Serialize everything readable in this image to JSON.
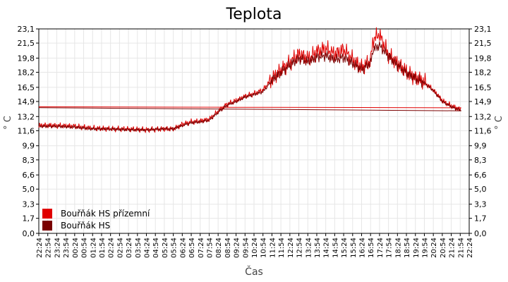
{
  "colors": {
    "series1": "#e00000",
    "series2": "#7a0000",
    "grid": "#e6e6e6",
    "axis": "#000000"
  },
  "chart_data": {
    "type": "line",
    "title": "Teplota",
    "xlabel": "Čas",
    "ylabel": "° C",
    "grid": true,
    "legend_position": "bottom-left",
    "ylim": [
      0,
      23.1
    ],
    "y_ticks": [
      "0,0",
      "1,7",
      "3,3",
      "5,0",
      "6,6",
      "8,3",
      "9,9",
      "11,6",
      "13,2",
      "14,9",
      "16,5",
      "18,2",
      "19,8",
      "21,5",
      "23,1"
    ],
    "x_ticks": [
      "22:24",
      "22:54",
      "23:24",
      "23:54",
      "00:24",
      "00:54",
      "01:24",
      "01:54",
      "02:24",
      "02:54",
      "03:24",
      "03:54",
      "04:24",
      "04:54",
      "05:24",
      "05:54",
      "06:24",
      "06:54",
      "07:24",
      "07:54",
      "08:24",
      "08:54",
      "09:24",
      "09:54",
      "10:24",
      "10:54",
      "11:24",
      "11:54",
      "12:24",
      "12:54",
      "13:24",
      "13:54",
      "14:24",
      "14:54",
      "15:24",
      "15:54",
      "16:24",
      "16:54",
      "17:24",
      "17:54",
      "18:24",
      "18:54",
      "19:24",
      "19:54",
      "20:24",
      "20:54",
      "21:24",
      "21:54",
      "22:24"
    ],
    "series": [
      {
        "name": "Bouřňák HS přízemní",
        "x": [
          "22:24",
          "23:24",
          "00:24",
          "01:24",
          "02:24",
          "03:24",
          "04:24",
          "05:24",
          "05:54",
          "06:24",
          "06:54",
          "07:24",
          "07:54",
          "08:24",
          "08:54",
          "09:24",
          "09:54",
          "10:24",
          "10:54",
          "11:24",
          "11:54",
          "12:24",
          "12:54",
          "13:24",
          "13:54",
          "14:24",
          "14:54",
          "15:24",
          "15:54",
          "16:24",
          "16:54",
          "17:04",
          "17:24",
          "17:54",
          "18:24",
          "18:54",
          "19:24",
          "19:54",
          "20:24",
          "20:54",
          "21:24",
          "21:54",
          "22:24"
        ],
        "values": [
          12.2,
          12.2,
          12.1,
          11.9,
          11.8,
          11.8,
          11.7,
          11.8,
          11.8,
          12.3,
          12.6,
          12.7,
          12.9,
          13.8,
          14.6,
          15.0,
          15.5,
          15.8,
          16.2,
          17.5,
          18.4,
          19.3,
          20.3,
          19.7,
          20.5,
          20.9,
          20.2,
          20.8,
          19.6,
          18.7,
          19.6,
          22.0,
          22.4,
          20.2,
          19.2,
          18.2,
          17.6,
          17.1,
          16.2,
          15.0,
          14.4,
          14.0,
          14.3
        ]
      },
      {
        "name": "Bouřňák HS",
        "x": [
          "22:24",
          "23:24",
          "00:24",
          "01:24",
          "02:24",
          "03:24",
          "04:24",
          "05:24",
          "05:54",
          "06:24",
          "06:54",
          "07:24",
          "07:54",
          "08:24",
          "08:54",
          "09:24",
          "09:54",
          "10:24",
          "10:54",
          "11:24",
          "11:54",
          "12:24",
          "12:54",
          "13:24",
          "13:54",
          "14:24",
          "14:54",
          "15:24",
          "15:54",
          "16:24",
          "16:54",
          "17:04",
          "17:24",
          "17:54",
          "18:24",
          "18:54",
          "19:24",
          "19:54",
          "20:24",
          "20:54",
          "21:24",
          "21:54",
          "22:24"
        ],
        "values": [
          12.1,
          12.1,
          12.0,
          11.8,
          11.8,
          11.7,
          11.7,
          11.8,
          11.8,
          12.2,
          12.5,
          12.6,
          12.8,
          13.7,
          14.5,
          14.9,
          15.4,
          15.7,
          16.0,
          17.3,
          18.2,
          19.0,
          19.8,
          19.4,
          19.9,
          20.1,
          19.6,
          19.9,
          19.2,
          18.5,
          19.3,
          20.8,
          21.2,
          20.0,
          19.0,
          18.1,
          17.5,
          17.0,
          16.1,
          14.9,
          14.3,
          13.9,
          14.2
        ]
      }
    ]
  }
}
